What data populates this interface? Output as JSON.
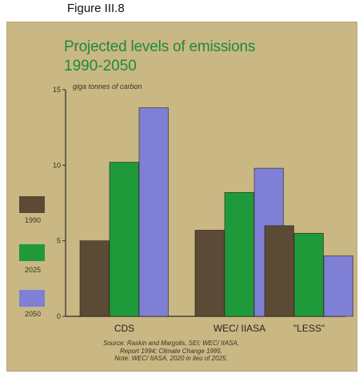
{
  "figure_label": "Figure III.8",
  "title_line1": "Projected levels of emissions",
  "title_line2": "1990-2050",
  "unit_label": "giga tonnes of carbon",
  "colors": {
    "background_panel": "#c9b784",
    "title": "#1f8a3a",
    "s1990": "#5a4a36",
    "s2025": "#1f9a3a",
    "s2050": "#7f7fd6",
    "axis": "#2a2a2a"
  },
  "legend": [
    {
      "label": "1990",
      "color_key": "s1990"
    },
    {
      "label": "2025",
      "color_key": "s2025"
    },
    {
      "label": "2050",
      "color_key": "s2050"
    }
  ],
  "source_lines": [
    "Source: Raskin and Margolis, SEI; WEC/ IIASA,",
    "Report 1994; Climate Change 1995.",
    "Note: WEC/ IIASA, 2020 in lieu of 2025."
  ],
  "chart_data": {
    "type": "bar",
    "categories": [
      "CDS",
      "WEC/ IIASA",
      "\"LESS\""
    ],
    "series": [
      {
        "name": "1990",
        "values": [
          5.0,
          5.7,
          6.0
        ]
      },
      {
        "name": "2025",
        "values": [
          10.2,
          8.2,
          5.5
        ]
      },
      {
        "name": "2050",
        "values": [
          13.8,
          9.8,
          4.0
        ]
      }
    ],
    "ylabel": "giga tonnes of carbon",
    "ylim": [
      0,
      15
    ],
    "yticks": [
      0,
      5,
      10,
      15
    ],
    "grid": false,
    "legend_position": "left"
  }
}
